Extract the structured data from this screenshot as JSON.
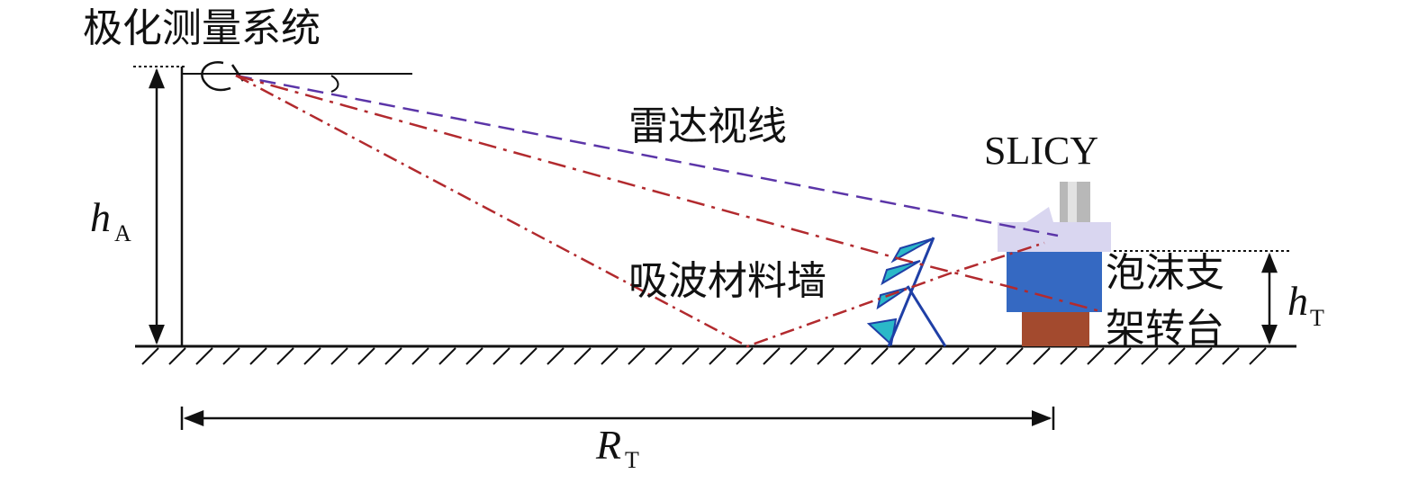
{
  "labels": {
    "system": "极化测量系统",
    "radar_los": "雷达视线",
    "target": "SLICY",
    "absorber_wall": "吸波材料墙",
    "foam_line1": "泡沫支",
    "foam_line2": "架转台",
    "h_A_main": "h",
    "h_A_sub": "A",
    "h_T_main": "h",
    "h_T_sub": "T",
    "R_T_main": "R",
    "R_T_sub": "T"
  },
  "colors": {
    "los_line": "#5b35a8",
    "multipath_line": "#b22a2e",
    "absorber_fill": "#2ab8c8",
    "absorber_edge": "#1f3fa6",
    "slicy_top": "#d9d6f0",
    "foam_support": "#3569c2",
    "turntable": "#a34a2e",
    "cylinder": "#b8b8b8"
  }
}
